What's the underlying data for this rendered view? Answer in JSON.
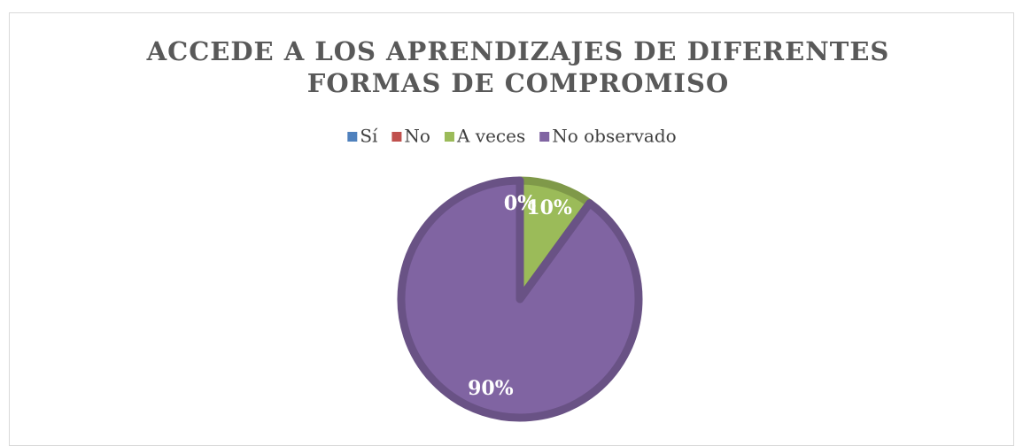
{
  "chart_data": {
    "type": "pie",
    "title": "ACCEDE A LOS APRENDIZAJES DE DIFERENTES FORMAS DE COMPROMISO",
    "categories": [
      "Sí",
      "No",
      "A veces",
      "No observado"
    ],
    "values": [
      0,
      0,
      10,
      90
    ],
    "value_labels": [
      "0%",
      "0%",
      "10%",
      "90%"
    ],
    "colors": [
      "#4f81bd",
      "#c0504d",
      "#9bbb59",
      "#8064a2"
    ],
    "legend": "top"
  }
}
